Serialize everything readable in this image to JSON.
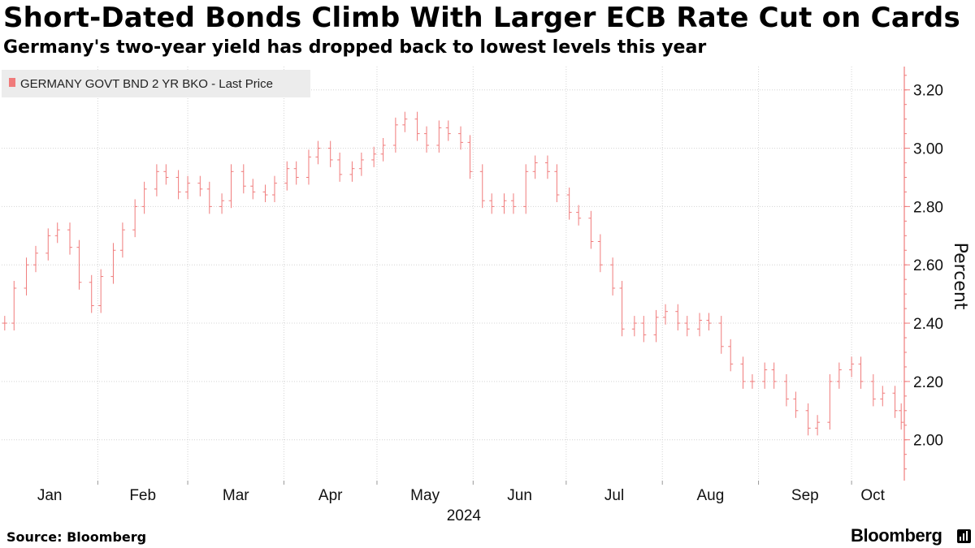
{
  "header": {
    "title": "Short-Dated Bonds Climb With Larger ECB Rate Cut on Cards",
    "subtitle": "Germany's two-year yield has dropped back to lowest levels this year"
  },
  "footer": {
    "source": "Source: Bloomberg",
    "brand": "Bloomberg"
  },
  "chart_data": {
    "type": "line",
    "style": "ohlc-bars",
    "color": "#f07b7b",
    "legend": {
      "label": "GERMANY GOVT BND 2 YR BKO - Last Price",
      "position": "top-left"
    },
    "ylabel": "Percent",
    "ylim": [
      1.86,
      3.28
    ],
    "yticks": [
      2.0,
      2.2,
      2.4,
      2.6,
      2.8,
      3.0,
      3.2
    ],
    "ytick_labels": [
      "2.00",
      "2.20",
      "2.40",
      "2.60",
      "2.80",
      "3.00",
      "3.20"
    ],
    "y_axis_side": "right",
    "x_range": [
      "2024-01-01",
      "2024-10-18"
    ],
    "x_tick_labels": [
      "Jan",
      "Feb",
      "Mar",
      "Apr",
      "May",
      "Jun",
      "Jul",
      "Aug",
      "Sep",
      "Oct"
    ],
    "x_year_label": "2024",
    "grid": {
      "vertical": "dotted",
      "horizontal": "dotted"
    },
    "series": [
      {
        "name": "GERMANY GOVT BND 2 YR BKO - Last Price",
        "x": [
          "2024-01-02",
          "2024-01-05",
          "2024-01-09",
          "2024-01-12",
          "2024-01-16",
          "2024-01-19",
          "2024-01-23",
          "2024-01-26",
          "2024-01-30",
          "2024-02-02",
          "2024-02-06",
          "2024-02-09",
          "2024-02-13",
          "2024-02-16",
          "2024-02-20",
          "2024-02-23",
          "2024-02-27",
          "2024-03-01",
          "2024-03-05",
          "2024-03-08",
          "2024-03-12",
          "2024-03-15",
          "2024-03-19",
          "2024-03-22",
          "2024-03-26",
          "2024-03-29",
          "2024-04-02",
          "2024-04-05",
          "2024-04-09",
          "2024-04-12",
          "2024-04-16",
          "2024-04-19",
          "2024-04-23",
          "2024-04-26",
          "2024-04-30",
          "2024-05-03",
          "2024-05-07",
          "2024-05-10",
          "2024-05-14",
          "2024-05-17",
          "2024-05-21",
          "2024-05-24",
          "2024-05-28",
          "2024-05-31",
          "2024-06-04",
          "2024-06-07",
          "2024-06-11",
          "2024-06-14",
          "2024-06-18",
          "2024-06-21",
          "2024-06-25",
          "2024-06-28",
          "2024-07-02",
          "2024-07-05",
          "2024-07-09",
          "2024-07-12",
          "2024-07-16",
          "2024-07-19",
          "2024-07-23",
          "2024-07-26",
          "2024-07-30",
          "2024-08-02",
          "2024-08-06",
          "2024-08-09",
          "2024-08-13",
          "2024-08-16",
          "2024-08-20",
          "2024-08-23",
          "2024-08-27",
          "2024-08-30",
          "2024-09-03",
          "2024-09-06",
          "2024-09-10",
          "2024-09-13",
          "2024-09-17",
          "2024-09-20",
          "2024-09-24",
          "2024-09-27",
          "2024-10-01",
          "2024-10-04",
          "2024-10-08",
          "2024-10-11",
          "2024-10-15",
          "2024-10-17"
        ],
        "values": [
          2.4,
          2.52,
          2.6,
          2.64,
          2.7,
          2.72,
          2.66,
          2.54,
          2.46,
          2.56,
          2.65,
          2.72,
          2.8,
          2.86,
          2.92,
          2.9,
          2.85,
          2.88,
          2.86,
          2.8,
          2.82,
          2.92,
          2.87,
          2.85,
          2.84,
          2.88,
          2.93,
          2.9,
          2.97,
          3.0,
          2.96,
          2.91,
          2.93,
          2.96,
          2.98,
          3.01,
          3.08,
          3.1,
          3.05,
          3.01,
          3.07,
          3.05,
          3.02,
          2.92,
          2.82,
          2.8,
          2.82,
          2.8,
          2.92,
          2.95,
          2.92,
          2.84,
          2.78,
          2.76,
          2.68,
          2.6,
          2.52,
          2.38,
          2.4,
          2.36,
          2.42,
          2.44,
          2.4,
          2.38,
          2.41,
          2.4,
          2.32,
          2.26,
          2.2,
          2.2,
          2.24,
          2.2,
          2.14,
          2.1,
          2.04,
          2.06,
          2.2,
          2.24,
          2.26,
          2.2,
          2.14,
          2.16,
          2.1,
          2.06
        ]
      }
    ]
  }
}
